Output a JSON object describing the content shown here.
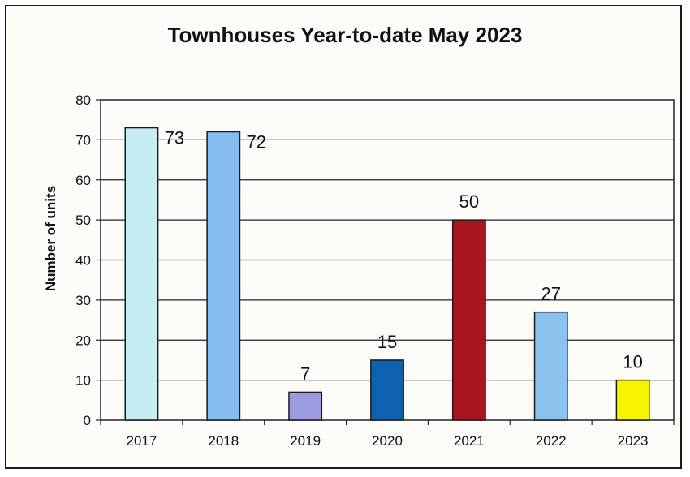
{
  "chart_data": {
    "type": "bar",
    "title": "Townhouses Year-to-date May 2023",
    "xlabel": "",
    "ylabel": "Number of units",
    "categories": [
      "2017",
      "2018",
      "2019",
      "2020",
      "2021",
      "2022",
      "2023"
    ],
    "values": [
      73,
      72,
      7,
      15,
      50,
      27,
      10
    ],
    "bar_colors": [
      "#c6eef2",
      "#86bdf0",
      "#9c9be0",
      "#0f62b0",
      "#a81420",
      "#8cc3ee",
      "#f8f400"
    ],
    "ylim": [
      0,
      80
    ],
    "yticks": [
      0,
      10,
      20,
      30,
      40,
      50,
      60,
      70,
      80
    ],
    "grid": true,
    "legend": "none",
    "data_labels": true
  }
}
